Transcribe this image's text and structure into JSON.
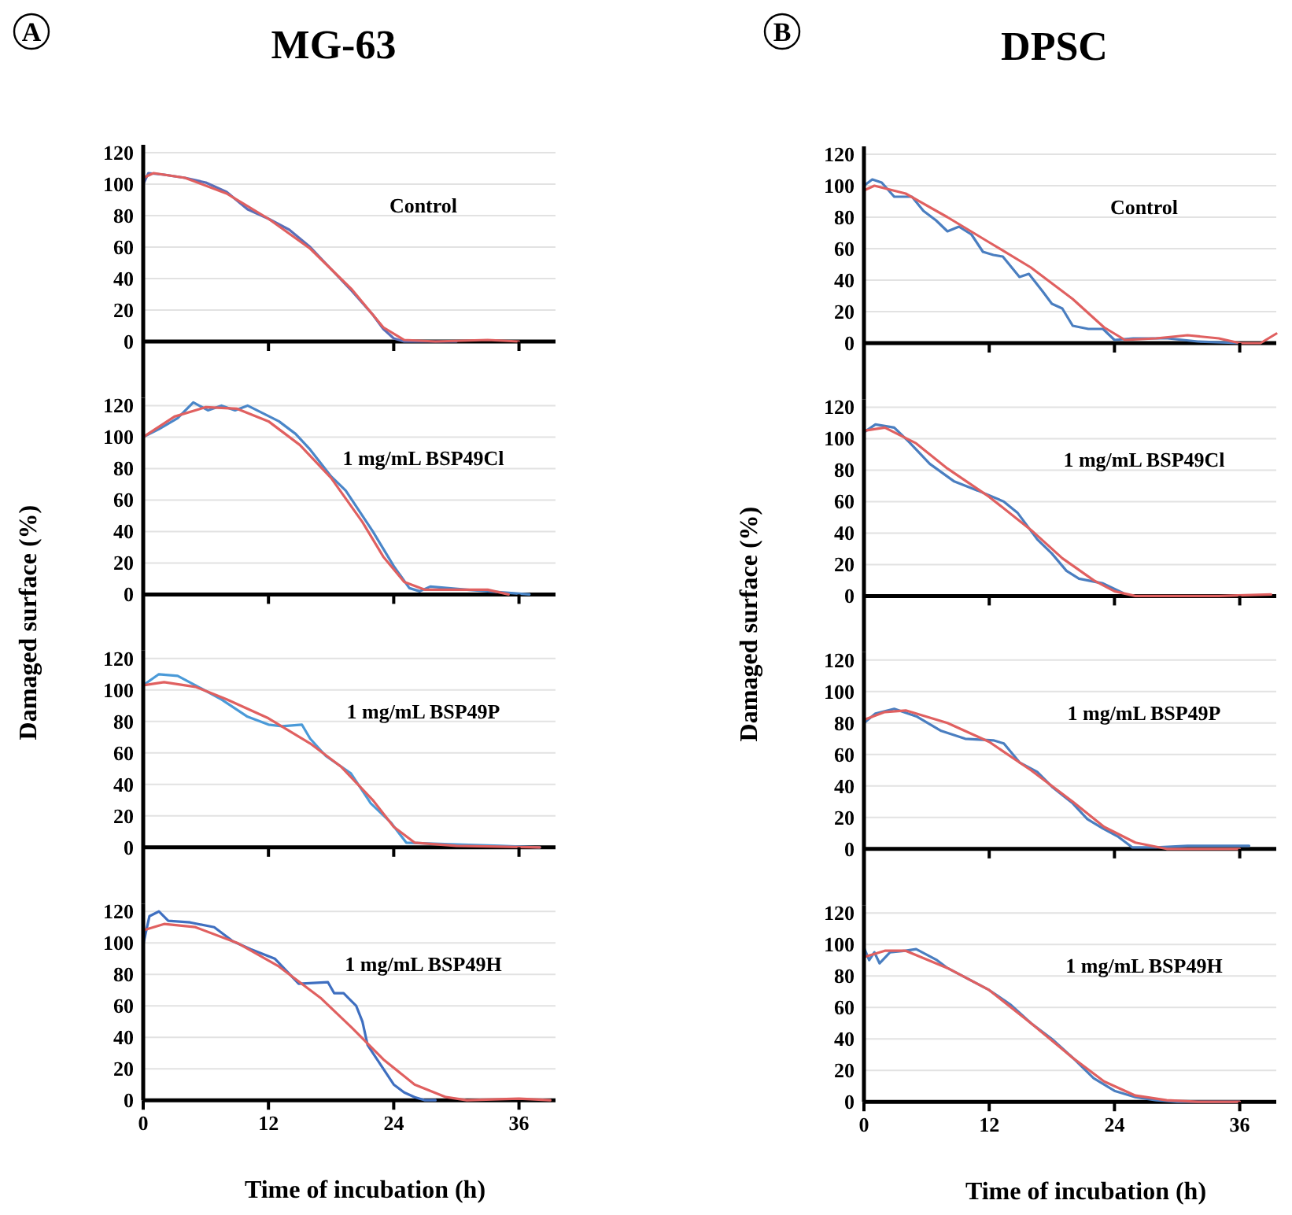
{
  "chart_data": [
    {
      "type": "line",
      "title": "MG-63",
      "subtitle": "Control",
      "annotations": [
        "A"
      ],
      "xlim": [
        0,
        39.5
      ],
      "ylim": [
        0,
        125
      ],
      "xticks": [
        0,
        12,
        24,
        36
      ],
      "yticks": [
        0,
        20,
        40,
        60,
        80,
        100,
        120
      ],
      "grid": "y",
      "tick_labels": "y",
      "series": [
        {
          "color": "#5a6fb8",
          "x": [
            0,
            0.5,
            2,
            4,
            6,
            8,
            10,
            12,
            14,
            16,
            18,
            20,
            22,
            23,
            24,
            25,
            30
          ],
          "values": [
            100,
            107,
            106,
            104,
            101,
            95,
            84,
            78,
            71,
            60,
            46,
            32,
            17,
            8,
            2,
            0,
            0
          ]
        },
        {
          "color": "#e06060",
          "type": "line",
          "x": [
            0,
            1,
            4,
            8,
            12,
            16,
            20,
            23,
            25,
            28,
            33,
            36
          ],
          "values": [
            104,
            107,
            104,
            94,
            78,
            59,
            33,
            9,
            1,
            0,
            1,
            0
          ]
        }
      ]
    },
    {
      "type": "line",
      "subtitle": "1 mg/mL BSP49Cl",
      "ylabel": "Damaged surface (%)",
      "xlim": [
        0,
        39.5
      ],
      "ylim": [
        0,
        125
      ],
      "xticks": [
        0,
        12,
        24,
        36
      ],
      "yticks": [
        0,
        20,
        40,
        60,
        80,
        100,
        120
      ],
      "grid": "y",
      "tick_labels": "y",
      "series": [
        {
          "color": "#4a86c8",
          "x": [
            0,
            1.5,
            3.3,
            4.8,
            6.2,
            7.5,
            8.8,
            10,
            13,
            14.6,
            16,
            18,
            19.4,
            21,
            22,
            24,
            25.5,
            26.5,
            27.5,
            31,
            33,
            37
          ],
          "values": [
            100,
            105,
            112,
            122,
            117,
            120,
            117,
            120,
            110,
            102,
            92,
            75,
            66,
            50,
            40,
            18,
            4,
            2,
            5,
            3,
            2,
            0
          ]
        },
        {
          "color": "#e06060",
          "x": [
            0,
            3,
            6,
            9,
            12,
            15,
            18,
            21,
            23,
            25,
            27,
            30,
            33,
            35
          ],
          "values": [
            100,
            113,
            119,
            118,
            110,
            95,
            74,
            46,
            24,
            8,
            3,
            3,
            3,
            0
          ]
        }
      ]
    },
    {
      "type": "line",
      "subtitle": "1 mg/mL BSP49P",
      "xlim": [
        0,
        39.5
      ],
      "ylim": [
        0,
        125
      ],
      "xticks": [
        0,
        12,
        24,
        36
      ],
      "yticks": [
        0,
        20,
        40,
        60,
        80,
        100,
        120
      ],
      "grid": "y",
      "tick_labels": "y",
      "series": [
        {
          "color": "#4a9ad8",
          "x": [
            0,
            1.5,
            3.3,
            5,
            7.5,
            10,
            12,
            13.3,
            15.2,
            16,
            17.5,
            19.9,
            21.8,
            23.7,
            25.2,
            29.4,
            34.2,
            38
          ],
          "values": [
            103,
            110,
            109,
            103,
            94,
            83,
            78,
            77,
            78,
            69,
            58,
            47,
            28,
            16,
            3,
            2,
            1,
            0
          ]
        },
        {
          "color": "#e06060",
          "x": [
            0,
            2,
            5,
            8,
            12,
            16,
            19,
            22,
            24,
            26,
            30,
            38
          ],
          "values": [
            103,
            105,
            102,
            94,
            82,
            66,
            51,
            30,
            13,
            3,
            1,
            0
          ]
        }
      ]
    },
    {
      "type": "line",
      "subtitle": "1 mg/mL BSP49H",
      "xlabel": "Time of incubation (h)",
      "xlim": [
        0,
        39.5
      ],
      "ylim": [
        0,
        125
      ],
      "xticks": [
        0,
        12,
        24,
        36
      ],
      "yticks": [
        0,
        20,
        40,
        60,
        80,
        100,
        120
      ],
      "grid": "y",
      "series": [
        {
          "color": "#3f6fc0",
          "x": [
            0,
            0.6,
            1.5,
            2.4,
            4.5,
            6.8,
            8.6,
            10.3,
            12.6,
            14.9,
            17.7,
            18.3,
            19.2,
            20.4,
            21,
            21.5,
            22,
            23,
            24,
            25,
            26,
            27,
            28
          ],
          "values": [
            99,
            117,
            120,
            114,
            113,
            110,
            101,
            96,
            90,
            74,
            75,
            68,
            68,
            60,
            50,
            35,
            30,
            20,
            10,
            5,
            2,
            0,
            0
          ]
        },
        {
          "color": "#e06060",
          "x": [
            0,
            2,
            5,
            9,
            13,
            17,
            20,
            23,
            26,
            29,
            31,
            36,
            39
          ],
          "values": [
            108,
            112,
            110,
            100,
            85,
            65,
            46,
            26,
            10,
            2,
            0,
            1,
            0
          ]
        }
      ]
    },
    {
      "type": "line",
      "title": "DPSC",
      "subtitle": "Control",
      "annotations": [
        "B"
      ],
      "xlim": [
        0,
        39.5
      ],
      "ylim": [
        0,
        125
      ],
      "xticks": [
        0,
        12,
        24,
        36
      ],
      "yticks": [
        0,
        20,
        40,
        60,
        80,
        100,
        120
      ],
      "grid": "y",
      "tick_labels": "y",
      "series": [
        {
          "color": "#4a7ec0",
          "x": [
            0,
            0.8,
            1.7,
            2.9,
            4.6,
            5.7,
            6.9,
            8,
            9.1,
            10.3,
            11.4,
            12.4,
            13.3,
            14.9,
            15.8,
            17.1,
            18,
            19,
            20,
            21.5,
            22.9,
            24,
            25.8,
            29.1,
            32,
            36
          ],
          "values": [
            100,
            104,
            102,
            93,
            93,
            84,
            78,
            71,
            74,
            69,
            58,
            56,
            55,
            42,
            44,
            33,
            25,
            22,
            11,
            9,
            9,
            2,
            3,
            3,
            1,
            0
          ]
        },
        {
          "color": "#e06060",
          "x": [
            0,
            1,
            4,
            8,
            12,
            16,
            20,
            23,
            25,
            28,
            31,
            34,
            36,
            38,
            39.5
          ],
          "values": [
            97,
            100,
            95,
            80,
            64,
            48,
            28,
            10,
            2,
            3,
            5,
            3,
            0,
            0,
            6
          ]
        }
      ]
    },
    {
      "type": "line",
      "subtitle": "1 mg/mL BSP49Cl",
      "ylabel": "Damaged surface (%)",
      "xlim": [
        0,
        39.5
      ],
      "ylim": [
        0,
        125
      ],
      "xticks": [
        0,
        12,
        24,
        36
      ],
      "yticks": [
        0,
        20,
        40,
        60,
        80,
        100,
        120
      ],
      "grid": "y",
      "tick_labels": "y",
      "series": [
        {
          "color": "#4a7ec0",
          "x": [
            0,
            1.1,
            2.9,
            4.3,
            6.3,
            8.6,
            10.9,
            13.4,
            14.7,
            16.6,
            18,
            19.4,
            20.6,
            22.9,
            24.8
          ],
          "values": [
            104,
            109,
            107,
            98,
            84,
            73,
            67,
            60,
            53,
            36,
            27,
            16,
            11,
            8,
            2
          ]
        },
        {
          "color": "#e06060",
          "x": [
            0,
            2,
            5,
            8,
            12,
            16,
            19,
            22,
            24,
            26,
            30,
            34,
            39
          ],
          "values": [
            105,
            107,
            97,
            81,
            63,
            42,
            24,
            10,
            3,
            0,
            0,
            0,
            1
          ]
        }
      ]
    },
    {
      "type": "line",
      "subtitle": "1 mg/mL BSP49P",
      "xlim": [
        0,
        39.5
      ],
      "ylim": [
        0,
        125
      ],
      "xticks": [
        0,
        12,
        24,
        36
      ],
      "yticks": [
        0,
        20,
        40,
        60,
        80,
        100,
        120
      ],
      "grid": "y",
      "tick_labels": "y",
      "series": [
        {
          "color": "#4a7ec0",
          "x": [
            0,
            1.1,
            2.9,
            5.1,
            7.4,
            9.7,
            12.4,
            13.4,
            14.9,
            16.6,
            18.1,
            20,
            21.4,
            22.9,
            24.3,
            25.7,
            28,
            31,
            36.9
          ],
          "values": [
            80,
            86,
            89,
            84,
            75,
            70,
            69,
            67,
            55,
            49,
            39,
            29,
            19,
            13,
            8,
            1,
            1,
            2,
            2
          ]
        },
        {
          "color": "#e06060",
          "x": [
            0,
            2,
            4,
            8,
            12,
            16,
            20,
            23,
            26,
            29,
            33,
            36
          ],
          "values": [
            82,
            87,
            88,
            80,
            68,
            50,
            30,
            14,
            4,
            0,
            0,
            0
          ]
        }
      ]
    },
    {
      "type": "line",
      "subtitle": "1 mg/mL BSP49H",
      "xlabel": "Time of incubation (h)",
      "xlim": [
        0,
        39.5
      ],
      "ylim": [
        0,
        125
      ],
      "xticks": [
        0,
        12,
        24,
        36
      ],
      "yticks": [
        0,
        20,
        40,
        60,
        80,
        100,
        120
      ],
      "grid": "y",
      "series": [
        {
          "color": "#4a7ec0",
          "x": [
            0,
            0.5,
            1,
            1.5,
            2.5,
            4,
            5,
            7,
            8,
            10,
            12,
            14,
            16,
            18,
            20,
            22,
            24,
            26,
            28,
            30,
            36
          ],
          "values": [
            98,
            90,
            95,
            88,
            95,
            96,
            97,
            90,
            85,
            78,
            71,
            62,
            50,
            40,
            28,
            15,
            7,
            3,
            1,
            0,
            0
          ]
        },
        {
          "color": "#e06060",
          "x": [
            0,
            2,
            4,
            8,
            12,
            16,
            20,
            23,
            26,
            29,
            32,
            36
          ],
          "values": [
            92,
            96,
            96,
            85,
            71,
            50,
            28,
            13,
            4,
            1,
            0,
            0
          ]
        }
      ]
    }
  ]
}
